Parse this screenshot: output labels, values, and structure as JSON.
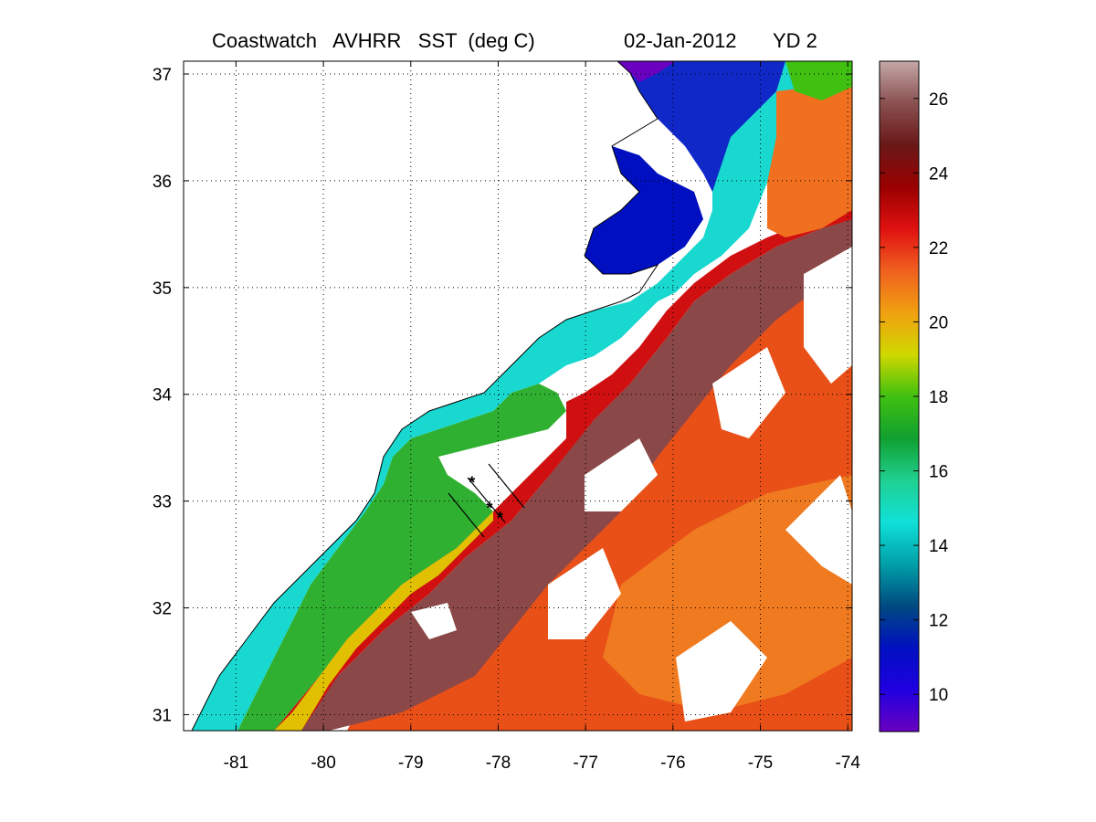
{
  "title": {
    "product": "Coastwatch   AVHRR   SST  (deg C)",
    "date": "02-Jan-2012",
    "yearday": "YD 2"
  },
  "map": {
    "lon_range": [
      -81.6,
      -73.95
    ],
    "lat_range": [
      30.85,
      37.12
    ],
    "lon_ticks": [
      "-81",
      "-80",
      "-79",
      "-78",
      "-77",
      "-76",
      "-75",
      "-74"
    ],
    "lat_ticks": [
      "31",
      "32",
      "33",
      "34",
      "35",
      "36",
      "37"
    ],
    "gridlines": "dotted",
    "land_color": "#ffffff",
    "cloud_mask_color": "#ffffff"
  },
  "colorbar": {
    "range": [
      9,
      27
    ],
    "tick_labels": [
      "10",
      "12",
      "14",
      "16",
      "18",
      "20",
      "22",
      "24",
      "26"
    ],
    "colors": [
      "#6a00c0",
      "#2000e0",
      "#0010c0",
      "#004a80",
      "#00a0a8",
      "#10e0d8",
      "#20d090",
      "#10a030",
      "#40c010",
      "#d0d800",
      "#f0a010",
      "#f06020",
      "#e01010",
      "#9a0000",
      "#6a1818",
      "#8a5050",
      "#c4a8a8"
    ]
  },
  "transect_markers": [
    {
      "lon": -78.3,
      "lat": 33.18,
      "symbol": "*"
    },
    {
      "lon": -78.1,
      "lat": 32.94,
      "symbol": "*"
    },
    {
      "lon": -77.98,
      "lat": 32.85,
      "symbol": "*"
    }
  ]
}
